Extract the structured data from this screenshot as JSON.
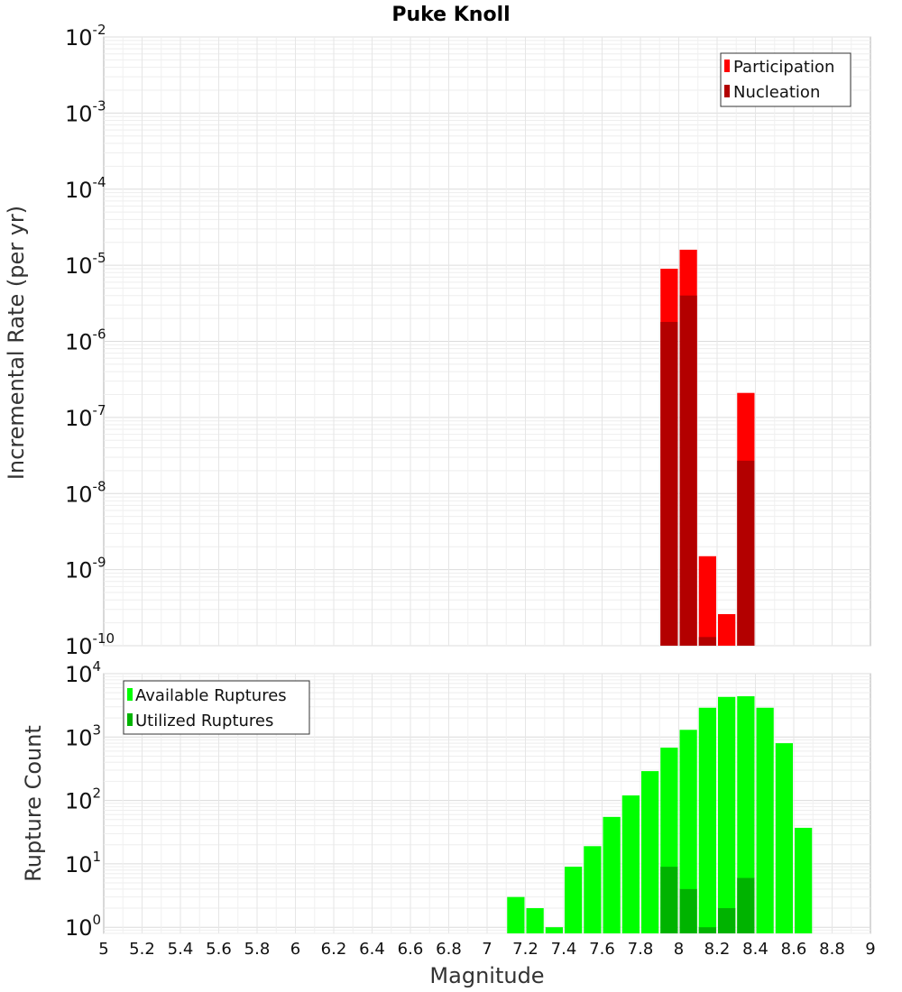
{
  "chart_data": {
    "type": "bar",
    "title": "Puke Knoll",
    "xlabel": "Magnitude",
    "xlim": [
      5,
      9
    ],
    "bin_width": 0.1,
    "x_ticks": [
      "5",
      "5.2",
      "5.4",
      "5.6",
      "5.8",
      "6",
      "6.2",
      "6.4",
      "6.6",
      "6.8",
      "7",
      "7.2",
      "7.4",
      "7.6",
      "7.8",
      "8",
      "8.2",
      "8.4",
      "8.6",
      "8.8",
      "9"
    ],
    "grid": true,
    "panels": [
      {
        "ylabel": "Incremental Rate (per yr)",
        "yscale": "log",
        "ylim": [
          1e-10,
          0.01
        ],
        "y_ticks": [
          {
            "base": "10",
            "exp": "-2"
          },
          {
            "base": "10",
            "exp": "-3"
          },
          {
            "base": "10",
            "exp": "-4"
          },
          {
            "base": "10",
            "exp": "-5"
          },
          {
            "base": "10",
            "exp": "-6"
          },
          {
            "base": "10",
            "exp": "-7"
          },
          {
            "base": "10",
            "exp": "-8"
          },
          {
            "base": "10",
            "exp": "-9"
          },
          {
            "base": "10",
            "exp": "-10"
          }
        ],
        "legend_position": "top-right",
        "series": [
          {
            "name": "Participation",
            "color": "#ff0000",
            "x": [
              7.95,
              8.05,
              8.15,
              8.25,
              8.35
            ],
            "values": [
              9e-06,
              1.6e-05,
              1.5e-09,
              2.6e-10,
              2.1e-07
            ]
          },
          {
            "name": "Nucleation",
            "color": "#b30000",
            "x": [
              7.95,
              8.05,
              8.15,
              8.35
            ],
            "values": [
              1.8e-06,
              4e-06,
              1.3e-10,
              2.7e-08
            ]
          }
        ]
      },
      {
        "ylabel": "Rupture Count",
        "yscale": "log",
        "ylim": [
          0.8,
          10000
        ],
        "y_ticks": [
          {
            "base": "10",
            "exp": "4"
          },
          {
            "base": "10",
            "exp": "3"
          },
          {
            "base": "10",
            "exp": "2"
          },
          {
            "base": "10",
            "exp": "1"
          },
          {
            "base": "10",
            "exp": "0"
          }
        ],
        "legend_position": "top-left",
        "series": [
          {
            "name": "Available Ruptures",
            "color": "#00ff00",
            "x": [
              7.15,
              7.25,
              7.35,
              7.45,
              7.55,
              7.65,
              7.75,
              7.85,
              7.95,
              8.05,
              8.15,
              8.25,
              8.35,
              8.45,
              8.55,
              8.65
            ],
            "values": [
              3,
              2,
              1,
              9,
              19,
              55,
              120,
              290,
              680,
              1300,
              2900,
              4300,
              4400,
              2900,
              800,
              37
            ]
          },
          {
            "name": "Utilized Ruptures",
            "color": "#00b300",
            "x": [
              7.95,
              8.05,
              8.15,
              8.25,
              8.35
            ],
            "values": [
              9,
              4,
              1,
              2,
              6
            ]
          }
        ]
      }
    ]
  }
}
